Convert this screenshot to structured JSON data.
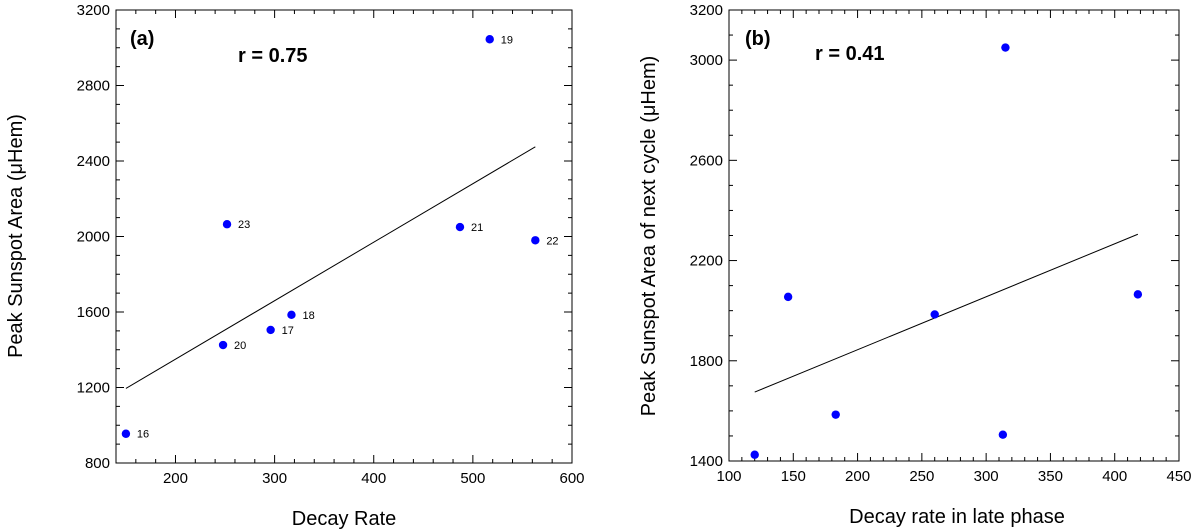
{
  "chart_data": [
    {
      "type": "scatter",
      "panel_label": "(a)",
      "annotation": "r = 0.75",
      "xlabel": "Decay Rate",
      "ylabel": "Peak Sunspot Area (μHem)",
      "xlim": [
        140,
        600
      ],
      "ylim": [
        800,
        3200
      ],
      "xticks": [
        200,
        300,
        400,
        500,
        600
      ],
      "yticks": [
        800,
        1200,
        1600,
        2000,
        2400,
        2800,
        3200
      ],
      "marker_color": "#0000ff",
      "points": [
        {
          "x": 150,
          "y": 955,
          "label": "16"
        },
        {
          "x": 296,
          "y": 1505,
          "label": "17"
        },
        {
          "x": 317,
          "y": 1585,
          "label": "18"
        },
        {
          "x": 517,
          "y": 3045,
          "label": "19"
        },
        {
          "x": 248,
          "y": 1425,
          "label": "20"
        },
        {
          "x": 487,
          "y": 2050,
          "label": "21"
        },
        {
          "x": 563,
          "y": 1980,
          "label": "22"
        },
        {
          "x": 252,
          "y": 2065,
          "label": "23"
        }
      ],
      "fit_line": {
        "x": [
          150,
          563
        ],
        "y": [
          1195,
          2475
        ]
      }
    },
    {
      "type": "scatter",
      "panel_label": "(b)",
      "annotation": "r = 0.41",
      "xlabel": "Decay rate in late phase",
      "ylabel": "Peak Sunspot Area of next cycle (μHem)",
      "xlim": [
        100,
        450
      ],
      "ylim": [
        1400,
        3200
      ],
      "xticks": [
        100,
        150,
        200,
        250,
        300,
        350,
        400,
        450
      ],
      "yticks": [
        1400,
        1800,
        2200,
        2600,
        3000,
        3200
      ],
      "marker_color": "#0000ff",
      "points": [
        {
          "x": 120,
          "y": 1425
        },
        {
          "x": 146,
          "y": 2055
        },
        {
          "x": 183,
          "y": 1585
        },
        {
          "x": 260,
          "y": 1985
        },
        {
          "x": 313,
          "y": 1505
        },
        {
          "x": 315,
          "y": 3050
        },
        {
          "x": 418,
          "y": 2065
        }
      ],
      "fit_line": {
        "x": [
          120,
          418
        ],
        "y": [
          1675,
          2305
        ]
      }
    }
  ]
}
